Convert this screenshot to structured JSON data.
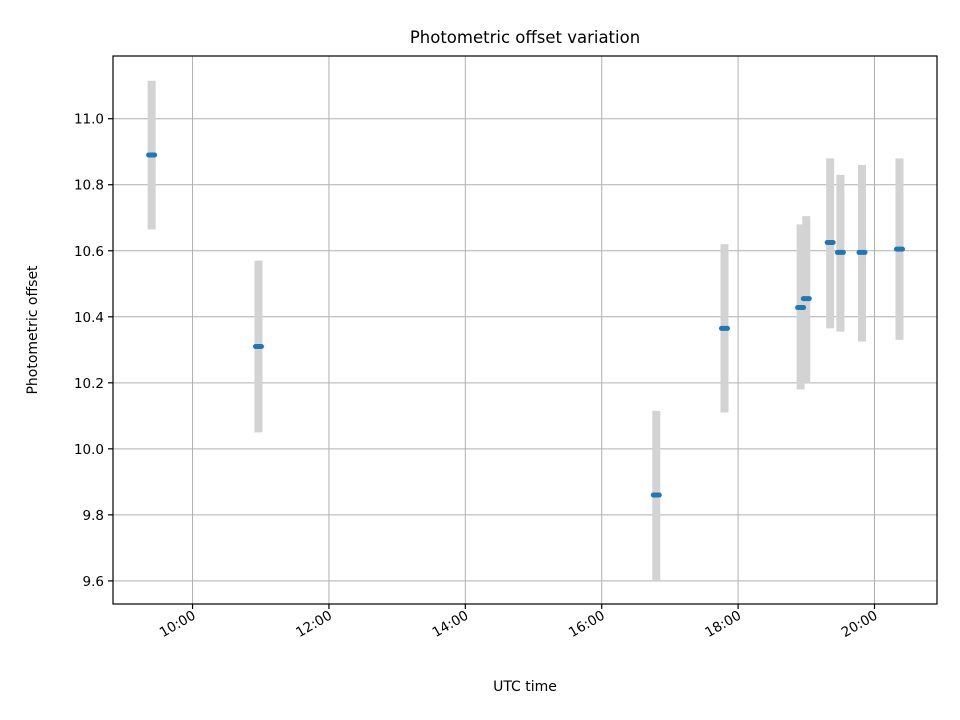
{
  "chart_data": {
    "type": "scatter",
    "title": "Photometric offset variation",
    "xlabel": "UTC time",
    "ylabel": "Photometric offset",
    "x_ticks": [
      "10:00",
      "12:00",
      "14:00",
      "16:00",
      "18:00",
      "20:00"
    ],
    "y_ticks": [
      "9.6",
      "9.8",
      "10.0",
      "10.2",
      "10.4",
      "10.6",
      "10.8",
      "11.0"
    ],
    "xlim": [
      "08:50",
      "20:55"
    ],
    "ylim": [
      9.53,
      11.19
    ],
    "grid": true,
    "colors": {
      "marker": "#1f77b4",
      "errorbar": "#d3d3d3"
    },
    "series": [
      {
        "points": [
          {
            "x": "09:24",
            "y": 10.89,
            "ylow": 10.665,
            "yhigh": 11.115
          },
          {
            "x": "10:58",
            "y": 10.31,
            "ylow": 10.05,
            "yhigh": 10.57
          },
          {
            "x": "16:48",
            "y": 9.86,
            "ylow": 9.6,
            "yhigh": 10.115
          },
          {
            "x": "17:48",
            "y": 10.365,
            "ylow": 10.11,
            "yhigh": 10.62
          },
          {
            "x": "18:55",
            "y": 10.428,
            "ylow": 10.18,
            "yhigh": 10.68
          },
          {
            "x": "19:00",
            "y": 10.455,
            "ylow": 10.2,
            "yhigh": 10.705
          },
          {
            "x": "19:21",
            "y": 10.625,
            "ylow": 10.365,
            "yhigh": 10.88
          },
          {
            "x": "19:30",
            "y": 10.595,
            "ylow": 10.355,
            "yhigh": 10.83
          },
          {
            "x": "19:49",
            "y": 10.595,
            "ylow": 10.325,
            "yhigh": 10.86
          },
          {
            "x": "20:22",
            "y": 10.605,
            "ylow": 10.33,
            "yhigh": 10.88
          }
        ]
      }
    ]
  }
}
